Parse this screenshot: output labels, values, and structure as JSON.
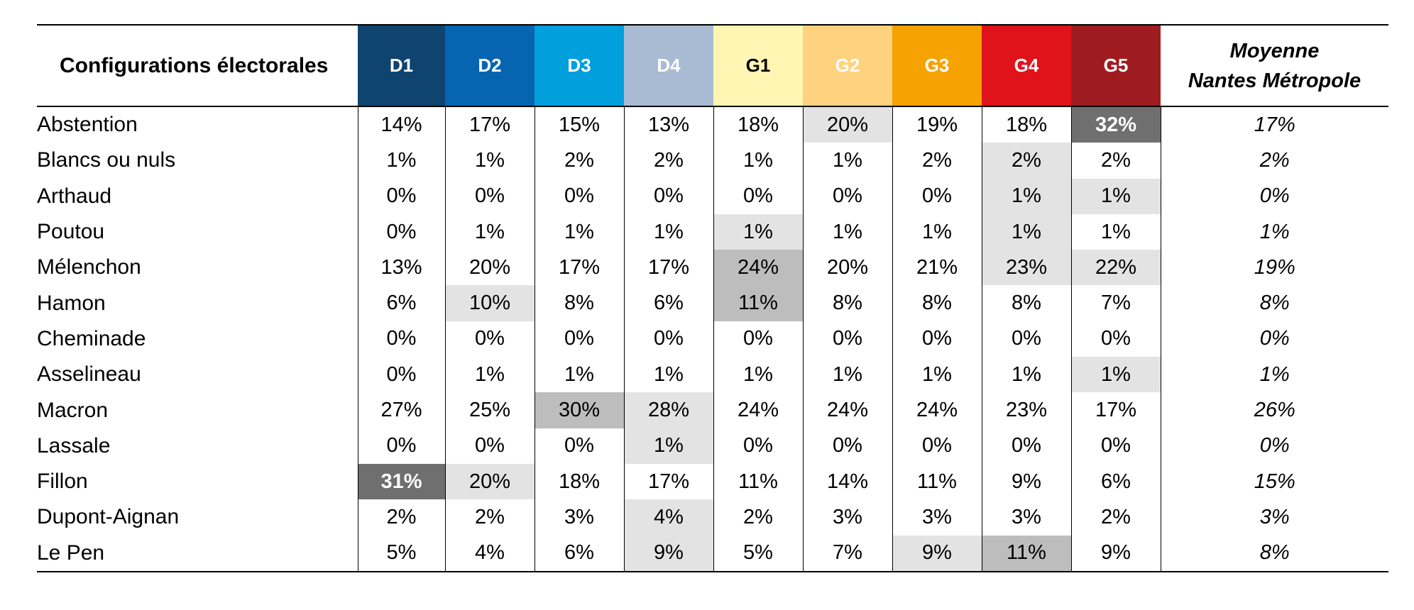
{
  "chart_data": {
    "type": "table",
    "corner_label": "Configurations électorales",
    "columns": [
      {
        "key": "D1",
        "label": "D1",
        "color": "#0f4470",
        "text_color": "#ffffff"
      },
      {
        "key": "D2",
        "label": "D2",
        "color": "#0764b1",
        "text_color": "#ffffff"
      },
      {
        "key": "D3",
        "label": "D3",
        "color": "#029fdd",
        "text_color": "#ffffff"
      },
      {
        "key": "D4",
        "label": "D4",
        "color": "#a9bbd2",
        "text_color": "#ffffff"
      },
      {
        "key": "G1",
        "label": "G1",
        "color": "#fff6b3",
        "text_color": "#000000"
      },
      {
        "key": "G2",
        "label": "G2",
        "color": "#fed27e",
        "text_color": "#ffffff"
      },
      {
        "key": "G3",
        "label": "G3",
        "color": "#f6a200",
        "text_color": "#ffffff"
      },
      {
        "key": "G4",
        "label": "G4",
        "color": "#e0121a",
        "text_color": "#ffffff"
      },
      {
        "key": "G5",
        "label": "G5",
        "color": "#9e1c20",
        "text_color": "#ffffff"
      }
    ],
    "average_label_line1": "Moyenne",
    "average_label_line2": "Nantes Métropole",
    "highlight_colors": {
      "light": "#e3e3e3",
      "mid": "#bdbdbd",
      "dark": "#6f6f6f"
    },
    "rows": [
      {
        "label": "Abstention",
        "values": [
          "14%",
          "17%",
          "15%",
          "13%",
          "18%",
          "20%",
          "19%",
          "18%",
          "32%"
        ],
        "highlight": [
          "",
          "",
          "",
          "",
          "",
          "light",
          "",
          "",
          "dark"
        ],
        "average": "17%"
      },
      {
        "label": "Blancs ou nuls",
        "values": [
          "1%",
          "1%",
          "2%",
          "2%",
          "1%",
          "1%",
          "2%",
          "2%",
          "2%"
        ],
        "highlight": [
          "",
          "",
          "",
          "",
          "",
          "",
          "",
          "light",
          ""
        ],
        "average": "2%"
      },
      {
        "label": "Arthaud",
        "values": [
          "0%",
          "0%",
          "0%",
          "0%",
          "0%",
          "0%",
          "0%",
          "1%",
          "1%"
        ],
        "highlight": [
          "",
          "",
          "",
          "",
          "",
          "",
          "",
          "light",
          "light"
        ],
        "average": "0%"
      },
      {
        "label": "Poutou",
        "values": [
          "0%",
          "1%",
          "1%",
          "1%",
          "1%",
          "1%",
          "1%",
          "1%",
          "1%"
        ],
        "highlight": [
          "",
          "",
          "",
          "",
          "light",
          "",
          "",
          "light",
          ""
        ],
        "average": "1%"
      },
      {
        "label": "Mélenchon",
        "values": [
          "13%",
          "20%",
          "17%",
          "17%",
          "24%",
          "20%",
          "21%",
          "23%",
          "22%"
        ],
        "highlight": [
          "",
          "",
          "",
          "",
          "mid",
          "",
          "",
          "light",
          "light"
        ],
        "average": "19%"
      },
      {
        "label": "Hamon",
        "values": [
          "6%",
          "10%",
          "8%",
          "6%",
          "11%",
          "8%",
          "8%",
          "8%",
          "7%"
        ],
        "highlight": [
          "",
          "light",
          "",
          "",
          "mid",
          "",
          "",
          "",
          ""
        ],
        "average": "8%"
      },
      {
        "label": "Cheminade",
        "values": [
          "0%",
          "0%",
          "0%",
          "0%",
          "0%",
          "0%",
          "0%",
          "0%",
          "0%"
        ],
        "highlight": [
          "",
          "",
          "",
          "",
          "",
          "",
          "",
          "",
          ""
        ],
        "average": "0%"
      },
      {
        "label": "Asselineau",
        "values": [
          "0%",
          "1%",
          "1%",
          "1%",
          "1%",
          "1%",
          "1%",
          "1%",
          "1%"
        ],
        "highlight": [
          "",
          "",
          "",
          "",
          "",
          "",
          "",
          "",
          "light"
        ],
        "average": "1%"
      },
      {
        "label": "Macron",
        "values": [
          "27%",
          "25%",
          "30%",
          "28%",
          "24%",
          "24%",
          "24%",
          "23%",
          "17%"
        ],
        "highlight": [
          "",
          "",
          "mid",
          "light",
          "",
          "",
          "",
          "",
          ""
        ],
        "average": "26%"
      },
      {
        "label": "Lassale",
        "values": [
          "0%",
          "0%",
          "0%",
          "1%",
          "0%",
          "0%",
          "0%",
          "0%",
          "0%"
        ],
        "highlight": [
          "",
          "",
          "",
          "light",
          "",
          "",
          "",
          "",
          ""
        ],
        "average": "0%"
      },
      {
        "label": "Fillon",
        "values": [
          "31%",
          "20%",
          "18%",
          "17%",
          "11%",
          "14%",
          "11%",
          "9%",
          "6%"
        ],
        "highlight": [
          "dark",
          "light",
          "",
          "",
          "",
          "",
          "",
          "",
          ""
        ],
        "average": "15%"
      },
      {
        "label": "Dupont-Aignan",
        "values": [
          "2%",
          "2%",
          "3%",
          "4%",
          "2%",
          "3%",
          "3%",
          "3%",
          "2%"
        ],
        "highlight": [
          "",
          "",
          "",
          "light",
          "",
          "",
          "",
          "",
          ""
        ],
        "average": "3%"
      },
      {
        "label": "Le Pen",
        "values": [
          "5%",
          "4%",
          "6%",
          "9%",
          "5%",
          "7%",
          "9%",
          "11%",
          "9%"
        ],
        "highlight": [
          "",
          "",
          "",
          "light",
          "",
          "",
          "light",
          "mid",
          ""
        ],
        "average": "8%"
      }
    ]
  }
}
